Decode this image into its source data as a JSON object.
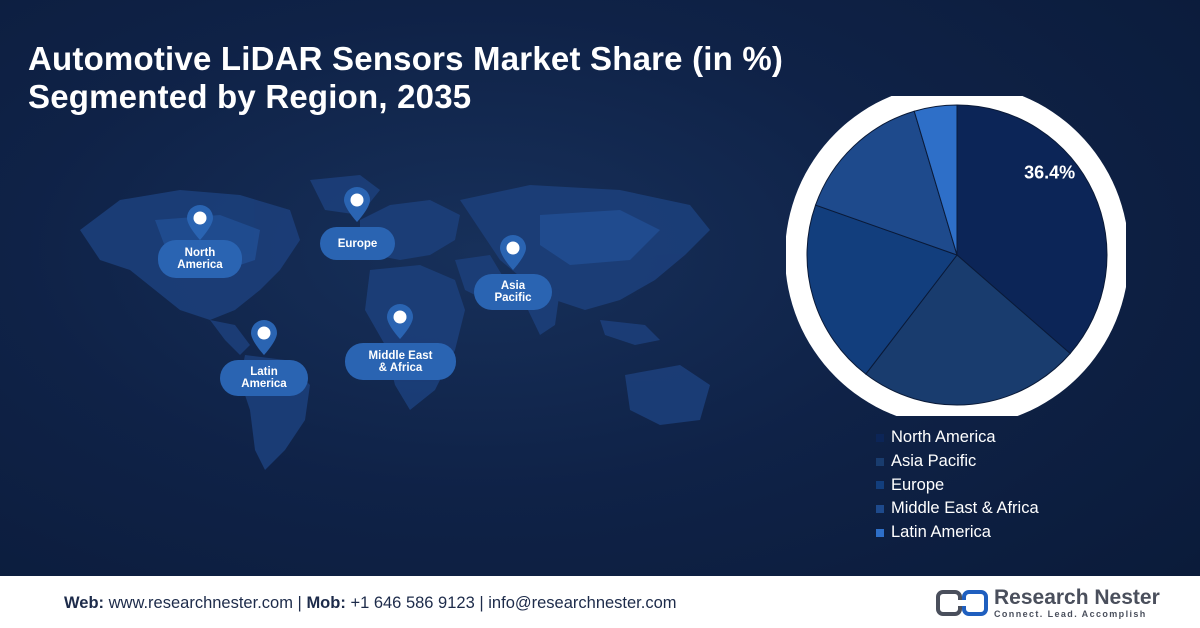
{
  "title": {
    "line1": "Automotive LiDAR Sensors Market Share (in %)",
    "line2": "Segmented by Region, 2035"
  },
  "map": {
    "regions": [
      {
        "id": "north-america",
        "label": "North\nAmerica"
      },
      {
        "id": "europe",
        "label": "Europe"
      },
      {
        "id": "asia-pacific",
        "label": "Asia\nPacific"
      },
      {
        "id": "latin-america",
        "label": "Latin\nAmerica"
      },
      {
        "id": "middle-east-africa",
        "label": "Middle East\n& Africa"
      }
    ]
  },
  "chart_data": {
    "type": "pie",
    "categories": [
      "North America",
      "Asia Pacific",
      "Europe",
      "Middle East & Africa",
      "Latin America"
    ],
    "values": [
      36.4,
      24.0,
      20.0,
      15.0,
      4.6
    ],
    "colors": [
      "#0c2557",
      "#193c6e",
      "#123e7d",
      "#1e4a8c",
      "#2e6fc8"
    ],
    "data_labels": [
      "36.4%",
      "",
      "",
      "",
      ""
    ],
    "legend_position": "bottom-right"
  },
  "footer": {
    "web_label": "Web:",
    "web_value": "www.researchnester.com",
    "mob_label": "Mob:",
    "mob_value": "+1 646 586 9123",
    "email_value": "info@researchnester.com",
    "separator": "|"
  },
  "logo": {
    "name": "Research Nester",
    "tagline": "Connect. Lead. Accomplish"
  }
}
